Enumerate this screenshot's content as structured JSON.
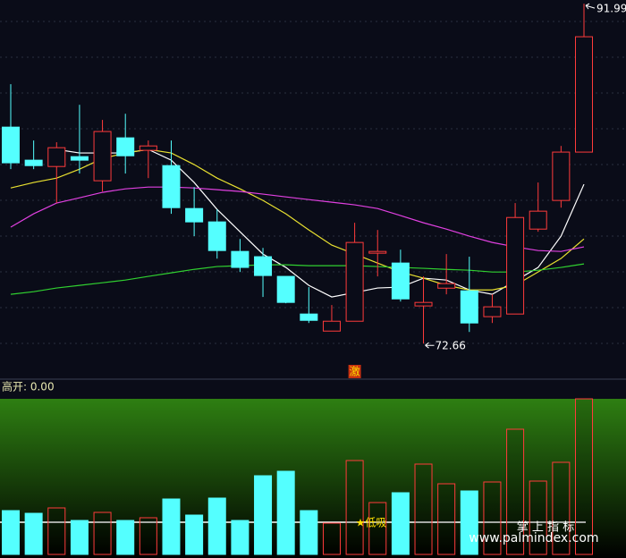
{
  "chart_data": {
    "type": "candlestick",
    "ylim": [
      71.5,
      92.2
    ],
    "up_color": "#ff3b3b",
    "down_color": "#54ffff",
    "open": [
      84.97,
      83.09,
      82.73,
      83.29,
      81.92,
      84.36,
      83.65,
      82.78,
      80.34,
      79.58,
      77.9,
      77.6,
      76.48,
      74.34,
      73.37,
      73.93,
      77.8,
      77.24,
      74.8,
      75.81,
      75.66,
      74.19,
      74.34,
      79.17,
      80.8,
      83.55
    ],
    "high": [
      87.41,
      84.21,
      84.11,
      86.24,
      85.38,
      85.73,
      84.21,
      84.21,
      81.56,
      80.29,
      78.61,
      78.1,
      76.48,
      75.87,
      74.85,
      79.53,
      79.12,
      78.0,
      76.48,
      77.75,
      77.6,
      75.46,
      80.65,
      81.82,
      83.9,
      91.99
    ],
    "low": [
      82.58,
      82.58,
      80.65,
      82.33,
      81.31,
      82.33,
      82.07,
      80.04,
      78.77,
      77.49,
      76.73,
      75.31,
      74.95,
      73.83,
      73.37,
      73.93,
      76.48,
      75.05,
      72.66,
      75.46,
      73.32,
      73.83,
      74.34,
      79.02,
      80.39,
      83.55
    ],
    "close": [
      82.94,
      82.78,
      83.8,
      83.09,
      84.72,
      83.34,
      83.9,
      80.39,
      79.58,
      77.95,
      76.99,
      76.53,
      75.0,
      73.98,
      73.93,
      78.41,
      77.9,
      75.2,
      75.0,
      76.07,
      73.83,
      74.75,
      79.83,
      80.19,
      83.55,
      90.11
    ],
    "series": [
      {
        "color": "#ffffff",
        "values": [
          null,
          null,
          83.7,
          83.5,
          83.5,
          83.5,
          83.7,
          83.09,
          81.82,
          80.29,
          79.02,
          77.75,
          76.99,
          75.97,
          75.31,
          75.56,
          75.82,
          75.87,
          76.38,
          76.27,
          75.71,
          75.46,
          76.22,
          76.99,
          78.77,
          81.72
        ]
      },
      {
        "color": "#e8e030",
        "values": [
          81.51,
          81.82,
          82.07,
          82.58,
          83.19,
          83.5,
          83.7,
          83.5,
          82.84,
          82.07,
          81.46,
          80.8,
          80.04,
          79.12,
          78.26,
          77.75,
          77.24,
          76.73,
          76.38,
          75.97,
          75.71,
          75.71,
          75.97,
          76.73,
          77.5,
          78.61
        ]
      },
      {
        "color": "#e040e0",
        "values": [
          79.28,
          80.04,
          80.65,
          80.95,
          81.26,
          81.46,
          81.56,
          81.56,
          81.51,
          81.41,
          81.31,
          81.16,
          81.0,
          80.85,
          80.7,
          80.55,
          80.34,
          79.94,
          79.53,
          79.17,
          78.77,
          78.41,
          78.16,
          77.95,
          77.9,
          78.16
        ]
      },
      {
        "color": "#30d030",
        "values": [
          75.46,
          75.61,
          75.82,
          75.97,
          76.12,
          76.27,
          76.48,
          76.68,
          76.88,
          77.04,
          77.09,
          77.14,
          77.14,
          77.09,
          77.09,
          77.09,
          77.04,
          76.99,
          76.94,
          76.88,
          76.83,
          76.73,
          76.73,
          76.83,
          76.99,
          77.19
        ]
      }
    ],
    "signals": [
      null,
      null,
      null,
      null,
      null,
      null,
      null,
      null,
      null,
      null,
      null,
      null,
      null,
      null,
      null,
      "激",
      null,
      null,
      null,
      null,
      null,
      null,
      null,
      null,
      null,
      null
    ],
    "indicator": {
      "label": "高开: 0.00",
      "ylim": [
        0,
        174
      ],
      "values": [
        49,
        46,
        52,
        38,
        47,
        38,
        41,
        62,
        44,
        63,
        38,
        88,
        93,
        49,
        35,
        105,
        58,
        69,
        101,
        79,
        71,
        81,
        140,
        82,
        103,
        174
      ],
      "signals": [
        null,
        null,
        null,
        null,
        null,
        null,
        null,
        null,
        null,
        null,
        null,
        null,
        null,
        null,
        null,
        "★低吸",
        null,
        null,
        null,
        null,
        null,
        null,
        null,
        null,
        null,
        null
      ]
    },
    "watermark": {
      "title": "掌 上 指 标",
      "url": "www.palmindex.com"
    }
  }
}
